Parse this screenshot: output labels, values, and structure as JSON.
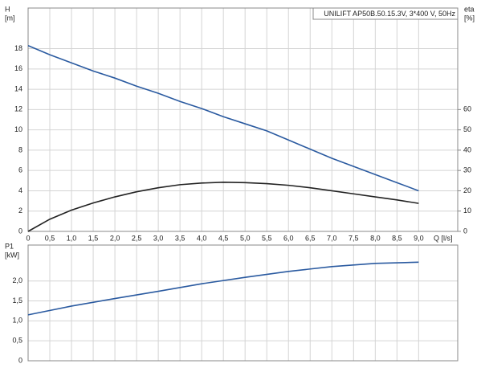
{
  "chart_data": [
    {
      "type": "line",
      "title": "UNILIFT AP50B.50.15.3V, 3*400 V, 50Hz",
      "y_label": [
        "H",
        "[m]"
      ],
      "y2_label": [
        "eta",
        "[%]"
      ],
      "x_label": "Q [l/s]",
      "xlim": [
        0,
        9.9
      ],
      "ylim": [
        0,
        22
      ],
      "y2lim": [
        0,
        110
      ],
      "xticks": [
        0,
        {
          "value": 0.5,
          "label": "0,5"
        },
        {
          "value": 1,
          "label": "1,0"
        },
        {
          "value": 1.5,
          "label": "1,5"
        },
        {
          "value": 2,
          "label": "2,0"
        },
        {
          "value": 2.5,
          "label": "2,5"
        },
        {
          "value": 3,
          "label": "3,0"
        },
        {
          "value": 3.5,
          "label": "3,5"
        },
        {
          "value": 4,
          "label": "4,0"
        },
        {
          "value": 4.5,
          "label": "4,5"
        },
        {
          "value": 5,
          "label": "5,0"
        },
        {
          "value": 5.5,
          "label": "5,5"
        },
        {
          "value": 6,
          "label": "6,0"
        },
        {
          "value": 6.5,
          "label": "6,5"
        },
        {
          "value": 7,
          "label": "7,0"
        },
        {
          "value": 7.5,
          "label": "7,5"
        },
        {
          "value": 8,
          "label": "8,0"
        },
        {
          "value": 8.5,
          "label": "8,5"
        },
        {
          "value": 9,
          "label": "9,0"
        }
      ],
      "yticks": [
        0,
        2,
        4,
        6,
        8,
        10,
        12,
        14,
        16,
        18
      ],
      "y2ticks": [
        0,
        10,
        20,
        30,
        40,
        50,
        60
      ],
      "grid": true,
      "x": [
        0,
        0.5,
        1,
        1.5,
        2,
        2.5,
        3,
        3.5,
        4,
        4.5,
        5,
        5.5,
        6,
        6.5,
        7,
        7.5,
        8,
        8.5,
        9
      ],
      "series": [
        {
          "color": "#2a5aa0",
          "values": [
            18.3,
            17.4,
            16.6,
            15.8,
            15.1,
            14.3,
            13.6,
            12.8,
            12.1,
            11.3,
            10.6,
            9.9,
            9.0,
            8.1,
            7.2,
            6.4,
            5.6,
            4.8,
            4.0
          ]
        },
        {
          "color": "#222222",
          "axis": "y2",
          "values": [
            0,
            6,
            10.5,
            14,
            17,
            19.5,
            21.5,
            23,
            23.8,
            24.2,
            24,
            23.5,
            22.7,
            21.5,
            20,
            18.5,
            17,
            15.5,
            13.8
          ]
        }
      ]
    },
    {
      "type": "line",
      "y_label": [
        "P1",
        "[kW]"
      ],
      "xlim": [
        0,
        9.9
      ],
      "ylim": [
        0,
        2.9
      ],
      "yticks": [
        0,
        {
          "value": 0.5,
          "label": "0,5"
        },
        {
          "value": 1,
          "label": "1,0"
        },
        {
          "value": 1.5,
          "label": "1,5"
        },
        {
          "value": 2,
          "label": "2,0"
        }
      ],
      "grid": true,
      "x": [
        0,
        1,
        2,
        3,
        4,
        5,
        6,
        7,
        8,
        9
      ],
      "series": [
        {
          "color": "#2a5aa0",
          "values": [
            1.15,
            1.37,
            1.56,
            1.74,
            1.93,
            2.09,
            2.24,
            2.36,
            2.44,
            2.47
          ]
        }
      ]
    }
  ]
}
